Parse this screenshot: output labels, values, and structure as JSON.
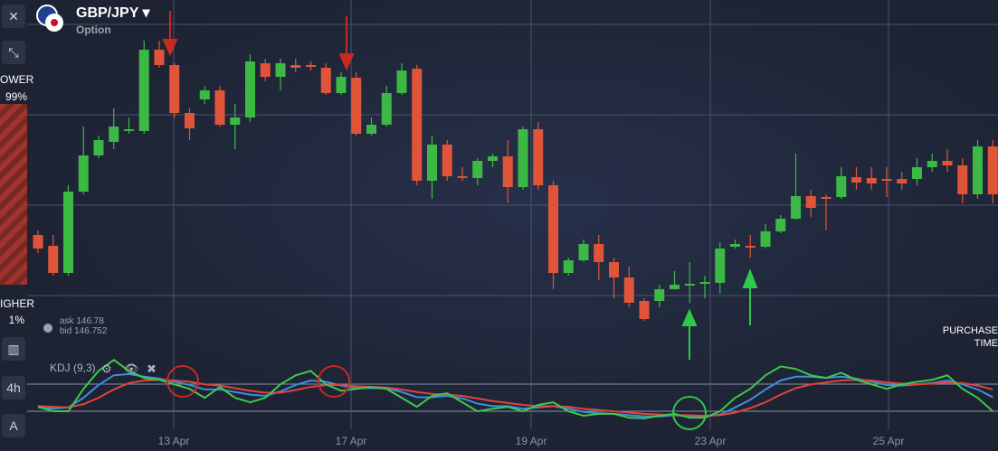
{
  "header": {
    "pair": "GBP/JPY",
    "subtitle": "Option"
  },
  "sidebar": {
    "power_label": "POWER",
    "power_value": "99%",
    "higher_label": "HIGHER",
    "higher_value": "1%",
    "timeframe": "4h"
  },
  "quote": {
    "ask": "ask 146.78",
    "bid": "bid 146.752"
  },
  "purchase": {
    "line1": "PURCHASE",
    "line2": "TIME"
  },
  "chart_data": {
    "type": "candlestick",
    "up_color": "#3cb944",
    "down_color": "#e0553a",
    "ylim": [
      144.9,
      148.9
    ],
    "open": [
      146.3,
      146.18,
      145.88,
      146.78,
      147.18,
      147.33,
      147.45,
      147.45,
      148.35,
      148.18,
      147.65,
      147.8,
      147.9,
      147.52,
      147.6,
      148.2,
      148.05,
      148.18,
      148.18,
      148.15,
      147.87,
      148.04,
      147.42,
      147.52,
      147.87,
      148.14,
      146.9,
      147.3,
      146.95,
      146.93,
      147.12,
      147.17,
      146.83,
      147.47,
      146.85,
      145.88,
      146.02,
      146.2,
      146.0,
      145.83,
      145.57,
      145.57,
      145.7,
      145.74,
      145.76,
      145.77,
      146.17,
      146.18,
      146.17,
      146.34,
      146.48,
      146.73,
      146.72,
      146.72,
      146.94,
      146.93,
      146.92,
      146.92,
      146.92,
      147.05,
      147.12,
      147.07,
      146.75,
      147.28
    ],
    "high": [
      146.35,
      146.3,
      146.85,
      147.5,
      147.4,
      147.7,
      147.6,
      148.45,
      148.45,
      148.2,
      147.7,
      147.95,
      147.95,
      147.75,
      148.3,
      148.25,
      148.25,
      148.25,
      148.22,
      148.2,
      148.1,
      148.1,
      147.6,
      147.95,
      148.2,
      148.18,
      147.4,
      147.35,
      147.05,
      147.15,
      147.2,
      147.35,
      147.5,
      147.55,
      146.9,
      146.05,
      146.25,
      146.3,
      146.05,
      145.95,
      145.6,
      145.75,
      145.9,
      146.0,
      145.85,
      146.22,
      146.25,
      146.3,
      146.42,
      146.52,
      147.2,
      146.8,
      146.75,
      147.05,
      147.05,
      147.05,
      147.05,
      147.0,
      147.15,
      147.2,
      147.25,
      147.15,
      147.35,
      147.35
    ],
    "low": [
      146.1,
      145.85,
      145.85,
      146.75,
      147.15,
      147.25,
      147.42,
      147.42,
      148.15,
      147.6,
      147.35,
      147.75,
      147.5,
      147.25,
      147.55,
      148.0,
      147.9,
      148.1,
      148.12,
      147.85,
      147.85,
      147.4,
      147.4,
      147.5,
      147.85,
      146.85,
      146.7,
      146.9,
      146.9,
      146.85,
      147.05,
      146.65,
      146.8,
      146.8,
      145.7,
      145.85,
      146.0,
      145.8,
      145.6,
      145.5,
      145.35,
      145.5,
      145.7,
      145.55,
      145.6,
      145.65,
      146.15,
      146.05,
      146.15,
      146.32,
      146.47,
      146.5,
      146.35,
      146.7,
      146.8,
      146.8,
      146.72,
      146.8,
      146.85,
      147.0,
      147.0,
      146.65,
      146.7,
      146.65
    ],
    "close": [
      146.15,
      145.88,
      146.78,
      147.18,
      147.35,
      147.5,
      147.47,
      148.35,
      148.18,
      147.65,
      147.48,
      147.9,
      147.52,
      147.6,
      148.22,
      148.05,
      148.2,
      148.15,
      148.16,
      147.87,
      148.05,
      147.42,
      147.52,
      147.87,
      148.12,
      146.9,
      147.3,
      146.95,
      146.93,
      147.12,
      147.17,
      146.83,
      147.47,
      146.85,
      145.88,
      146.02,
      146.2,
      146.0,
      145.83,
      145.55,
      145.37,
      145.7,
      145.75,
      145.76,
      145.78,
      146.15,
      146.2,
      146.17,
      146.34,
      146.48,
      146.73,
      146.6,
      146.7,
      146.95,
      146.88,
      146.87,
      146.91,
      146.87,
      147.05,
      147.12,
      147.07,
      146.75,
      147.28,
      146.75
    ],
    "x_labels": [
      "13 Apr",
      "17 Apr",
      "19 Apr",
      "23 Apr",
      "25 Apr"
    ],
    "indicator": {
      "label": "KDJ (9,3)",
      "ylim": [
        0,
        100
      ],
      "series": [
        {
          "color": "#3c8fe0",
          "values": [
            20,
            18,
            20,
            35,
            55,
            70,
            72,
            68,
            65,
            60,
            55,
            48,
            48,
            44,
            40,
            38,
            45,
            55,
            62,
            60,
            54,
            50,
            50,
            50,
            44,
            36,
            36,
            38,
            34,
            26,
            22,
            22,
            18,
            20,
            22,
            18,
            13,
            11,
            10,
            8,
            6,
            6,
            8,
            6,
            6,
            9,
            20,
            32,
            48,
            62,
            68,
            68,
            66,
            68,
            65,
            60,
            55,
            54,
            56,
            58,
            62,
            56,
            48,
            36
          ]
        },
        {
          "color": "#e0443a",
          "values": [
            22,
            21,
            20,
            25,
            35,
            48,
            58,
            62,
            63,
            62,
            60,
            56,
            54,
            50,
            46,
            43,
            43,
            47,
            52,
            55,
            55,
            53,
            52,
            51,
            48,
            44,
            41,
            40,
            38,
            34,
            30,
            27,
            24,
            22,
            22,
            21,
            18,
            16,
            14,
            12,
            10,
            9,
            8,
            8,
            7,
            8,
            12,
            19,
            28,
            40,
            50,
            56,
            59,
            62,
            63,
            62,
            59,
            57,
            56,
            57,
            59,
            58,
            54,
            48
          ]
        },
        {
          "color": "#3fc94a",
          "values": [
            21,
            14,
            14,
            49,
            77,
            94,
            77,
            66,
            63,
            56,
            49,
            35,
            52,
            35,
            28,
            35,
            56,
            70,
            77,
            56,
            46,
            49,
            52,
            49,
            35,
            21,
            38,
            42,
            28,
            14,
            18,
            21,
            14,
            24,
            28,
            14,
            7,
            10,
            10,
            4,
            3,
            7,
            10,
            4,
            4,
            14,
            35,
            49,
            70,
            84,
            80,
            70,
            66,
            74,
            63,
            56,
            49,
            56,
            60,
            63,
            70,
            49,
            35,
            14
          ]
        }
      ]
    }
  }
}
